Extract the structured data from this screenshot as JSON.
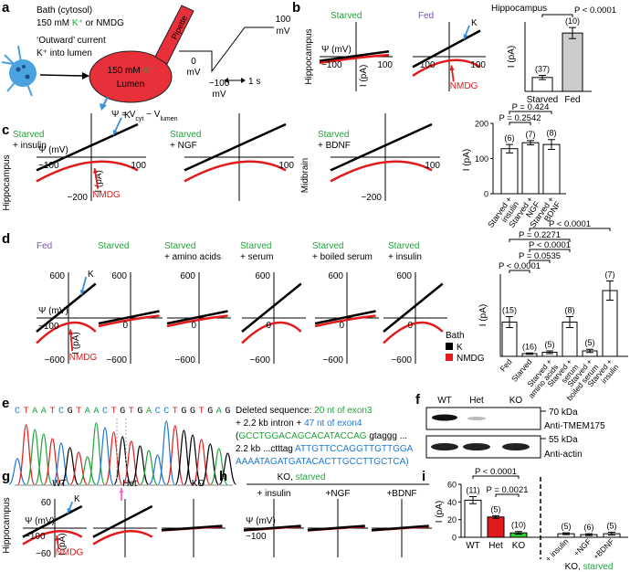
{
  "a": {
    "letter": "a",
    "bath": "Bath (cytosol)",
    "bath_ions": [
      {
        "text": "150 mM "
      },
      {
        "text": "K⁺",
        "color": "#21a33a"
      },
      {
        "text": " or NMDG"
      }
    ],
    "outward": "‘Outward’ current",
    "k_into": "K⁺ into lumen",
    "pipette": "Pipette",
    "lumen_conc": [
      {
        "text": "150 mM "
      },
      {
        "text": "K⁺",
        "color": "#21a33a"
      }
    ],
    "lumen": "Lumen",
    "psi": [
      {
        "text": "Ψ = V"
      },
      {
        "text": "cyt"
      },
      {
        "text": " − V"
      },
      {
        "text": "lumen"
      }
    ],
    "protocol": {
      "high": "100",
      "high_unit": "mV",
      "zero": "0",
      "zero_unit": "mV",
      "low": "−100",
      "low_unit": "mV",
      "time": "1 s"
    }
  },
  "b": {
    "letter": "b",
    "row_label": "Hippocampus",
    "plots": [
      {
        "title": [
          {
            "text": "Starved",
            "color": "#21a33a"
          }
        ],
        "kind": "starved",
        "x_label": "Ψ (mV)",
        "y_label": "I (pA)",
        "x_neg": "−100",
        "x_pos": "100"
      },
      {
        "title": [
          {
            "text": "Fed",
            "color": "#7a52b3"
          }
        ],
        "kind": "fed",
        "x_neg": "−100",
        "x_pos": "100",
        "k": "K",
        "nmdg": "NMDG"
      }
    ],
    "bars": {
      "title": "Hippocampus",
      "y_label": "I (pA)",
      "categories": [
        "Starved",
        "Fed"
      ],
      "values": [
        10,
        42
      ],
      "errors": [
        1.5,
        4
      ],
      "n": [
        "(37)",
        "(10)"
      ],
      "colors": [
        "#ffffff",
        "#cccccc"
      ],
      "ylim": [
        0,
        50
      ],
      "comparisons": [
        "P < 0.0001"
      ]
    }
  },
  "c": {
    "letter": "c",
    "row_labels": [
      "Hippocampus",
      "Midbrain"
    ],
    "plots": [
      {
        "title": [
          {
            "text": "Starved",
            "color": "#21a33a"
          },
          {
            "text": "+ insulin"
          }
        ],
        "kind": "fed",
        "x_label": "Ψ (mV)",
        "y_label": "I (pA)",
        "x_neg": "−100",
        "x_pos": "100",
        "y_neg": "−200",
        "k": "K",
        "nmdg": "NMDG"
      },
      {
        "title": [
          {
            "text": "Starved",
            "color": "#21a33a"
          },
          {
            "text": "+ NGF"
          }
        ],
        "kind": "fed",
        "x_pos": "100"
      },
      {
        "title": [
          {
            "text": "Starved",
            "color": "#21a33a"
          },
          {
            "text": "+ BDNF"
          }
        ],
        "kind": "fed",
        "x_pos": "100",
        "y_neg": "−200"
      }
    ],
    "bars": {
      "y_label": "I (pA)",
      "categories": [
        [
          "Starved +",
          "insulin"
        ],
        [
          "Starved +",
          "NGF"
        ],
        [
          "Starved +",
          "BDNF"
        ]
      ],
      "values": [
        128,
        145,
        140
      ],
      "errors": [
        12,
        6,
        14
      ],
      "n": [
        "(6)",
        "(7)",
        "(8)"
      ],
      "colors": [
        "#ffffff",
        "#ffffff",
        "#ffffff"
      ],
      "ylim": [
        0,
        200
      ],
      "yticks": [
        0,
        100,
        200
      ],
      "comparisons": [
        "P = 0.424",
        "P = 0.2542"
      ]
    }
  },
  "d": {
    "letter": "d",
    "plots": [
      {
        "title": [
          {
            "text": "Fed",
            "color": "#7a52b3"
          }
        ],
        "kind": "fed",
        "x_label": "Ψ (mV)",
        "y_label": "I (pA)",
        "x_neg": "−100",
        "y_pos": "600",
        "y_neg": "−600",
        "k": "K",
        "nmdg": "NMDG"
      },
      {
        "title": [
          {
            "text": "Starved",
            "color": "#21a33a"
          }
        ],
        "kind": "starved",
        "y_pos": "600",
        "zero": "0",
        "y_neg": "−600"
      },
      {
        "title": [
          {
            "text": "Starved",
            "color": "#21a33a"
          },
          {
            "text": "+ amino acids"
          }
        ],
        "kind": "starved",
        "y_pos": "600",
        "zero": "0",
        "y_neg": "−600"
      },
      {
        "title": [
          {
            "text": "Starved",
            "color": "#21a33a"
          },
          {
            "text": "+ serum"
          }
        ],
        "kind": "fed",
        "y_pos": "600",
        "zero": "0",
        "y_neg": "−600"
      },
      {
        "title": [
          {
            "text": "Starved",
            "color": "#21a33a"
          },
          {
            "text": "+ boiled serum"
          }
        ],
        "kind": "starved",
        "y_pos": "600",
        "zero": "0",
        "y_neg": "−600"
      },
      {
        "title": [
          {
            "text": "Starved",
            "color": "#21a33a"
          },
          {
            "text": "+ insulin"
          }
        ],
        "kind": "fed",
        "y_pos": "600",
        "zero": "0",
        "y_neg": "−600"
      }
    ],
    "legend": {
      "title": "Bath",
      "items": [
        {
          "text": "K",
          "color": "#000000"
        },
        {
          "text": "NMDG",
          "color": "#e31a1c"
        }
      ]
    },
    "bars": {
      "y_label": "I (pA)",
      "categories": [
        [
          "Fed"
        ],
        [
          "Starved"
        ],
        [
          "Starved +",
          "amino acids"
        ],
        [
          "Starved +",
          "serum"
        ],
        [
          "Starved +",
          "boiled serum"
        ],
        [
          "Starved +",
          "insulin"
        ]
      ],
      "values": [
        250,
        20,
        30,
        250,
        40,
        480
      ],
      "errors": [
        40,
        5,
        10,
        40,
        12,
        70
      ],
      "n": [
        "(15)",
        "(16)",
        "(5)",
        "(8)",
        "(5)",
        "(7)"
      ],
      "colors": [
        "#ffffff",
        "#ffffff",
        "#ffffff",
        "#ffffff",
        "#ffffff",
        "#ffffff"
      ],
      "ylim": [
        0,
        600
      ],
      "comparisons": [
        "P < 0.0001",
        "P = 0.2271",
        "P < 0.0001",
        "P = 0.0535",
        "P < 0.0001"
      ]
    }
  },
  "e": {
    "letter": "e",
    "sequence": [
      "C",
      "T",
      "A",
      "A",
      "T",
      "C",
      "G",
      "T",
      "A",
      "A",
      "C",
      "T",
      "G",
      "T",
      "G",
      "A",
      "C",
      "C",
      "T",
      "G",
      "G",
      "T",
      "G",
      "A",
      "G"
    ],
    "deleted": [
      [
        {
          "text": "Deleted sequence: "
        },
        {
          "text": "20 nt of exon3",
          "color": "#21a33a"
        }
      ],
      [
        {
          "text": "+ 2.2 kb intron + "
        },
        {
          "text": "47 nt of exon4",
          "color": "#1f78d1"
        }
      ],
      [
        {
          "text": "("
        },
        {
          "text": "GCCTGGACAGCACATACCAG",
          "color": "#21a33a"
        },
        {
          "text": " gtaggg ..."
        }
      ],
      [
        {
          "text": "2.2 kb ...ctttag "
        },
        {
          "text": "ATTGTTCCAGGTTGTTGGA",
          "color": "#1f78d1"
        }
      ],
      [
        {
          "text": "AAAATAGATGATACACTTGCCTTGCTCA)",
          "color": "#1f78d1"
        }
      ]
    ]
  },
  "f": {
    "letter": "f",
    "lanes": [
      "WT",
      "Het",
      "KO"
    ],
    "markers": [
      "70 kDa",
      "55 kDa"
    ],
    "antibodies": [
      "Anti-TMEM175",
      "Anti-actin"
    ]
  },
  "g": {
    "letter": "g",
    "row_label": "Hippocampus",
    "plots": [
      {
        "title": [
          {
            "text": "WT"
          }
        ],
        "kind": "fed",
        "x_label": "Ψ (mV)",
        "y_label": "I (pA)",
        "x_neg": "−100",
        "y_pos": "60",
        "y_neg": "−60",
        "k": "K",
        "nmdg": "NMDG"
      },
      {
        "title": [
          {
            "text": "Het"
          }
        ],
        "kind": "fed"
      },
      {
        "title": [
          {
            "text": "KO"
          }
        ],
        "kind": "flat"
      }
    ]
  },
  "h": {
    "letter": "h",
    "header": [
      {
        "text": "KO, "
      },
      {
        "text": "starved",
        "color": "#21a33a"
      }
    ],
    "plots": [
      {
        "title": [
          {
            "text": "+ insulin"
          }
        ],
        "kind": "flat",
        "x_label": "Ψ (mV)",
        "x_neg": "−100"
      },
      {
        "title": [
          {
            "text": "+NGF"
          }
        ],
        "kind": "flat"
      },
      {
        "title": [
          {
            "text": "+BDNF"
          }
        ],
        "kind": "flat"
      }
    ]
  },
  "i": {
    "letter": "i",
    "bars": {
      "y_label": "I (pA)",
      "categories": [
        "WT",
        "Het",
        "KO",
        "+ insulin",
        "+NGF",
        "+BDNF"
      ],
      "values": [
        42,
        23,
        5,
        4,
        3,
        4
      ],
      "errors": [
        4,
        1.5,
        1.5,
        1,
        1,
        1.5
      ],
      "n": [
        "(11)",
        "(5)",
        "(10)",
        "(5)",
        "(6)",
        "(5)"
      ],
      "colors": [
        "#ffffff",
        "#e31a1c",
        "#33cc33",
        "#ffffff",
        "#ffffff",
        "#ffffff"
      ],
      "ylim": [
        0,
        60
      ],
      "yticks": [
        0,
        20,
        40,
        60
      ],
      "comparisons": [
        "P < 0.0001",
        "P = 0.0021"
      ]
    },
    "group_label": [
      {
        "text": "KO, "
      },
      {
        "text": "starved",
        "color": "#21a33a"
      }
    ]
  }
}
